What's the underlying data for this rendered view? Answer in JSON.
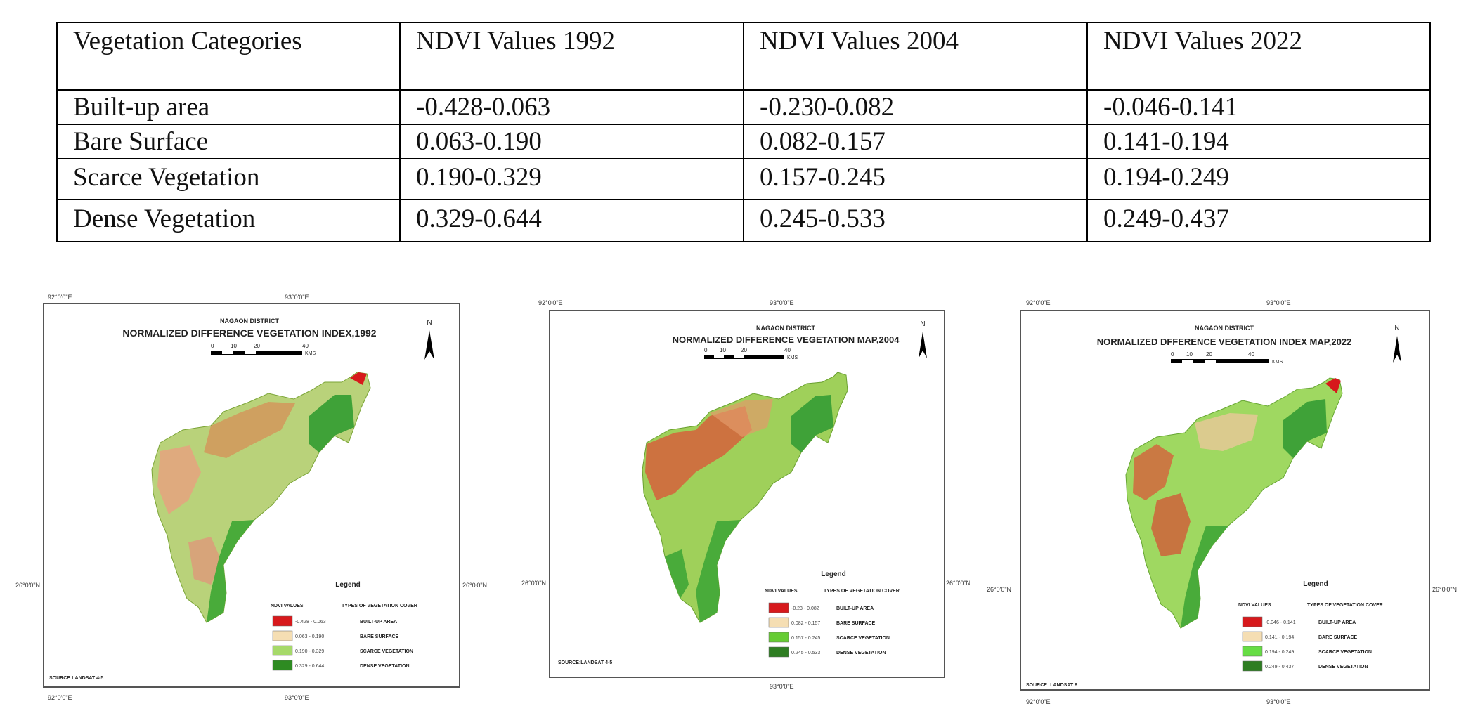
{
  "table": {
    "headers": [
      "Vegetation Categories",
      "NDVI Values 1992",
      "NDVI Values 2004",
      "NDVI Values 2022"
    ],
    "rows": [
      {
        "category": "Built-up area",
        "v1992": "-0.428-0.063",
        "v2004": "-0.230-0.082",
        "v2022": "-0.046-0.141"
      },
      {
        "category": "Bare Surface",
        "v1992": "0.063-0.190",
        "v2004": "0.082-0.157",
        "v2022": "0.141-0.194"
      },
      {
        "category": "Scarce Vegetation",
        "v1992": "0.190-0.329",
        "v2004": "0.157-0.245",
        "v2022": "0.194-0.249"
      },
      {
        "category": "Dense Vegetation",
        "v1992": "0.329-0.644",
        "v2004": "0.245-0.533",
        "v2022": "0.249-0.437"
      }
    ]
  },
  "maps": [
    {
      "district": "NAGAON DISTRICT",
      "title": "NORMALIZED DIFFERENCE VEGETATION INDEX,1992",
      "legend_title": "Legend",
      "legend_col1": "NDVI VALUES",
      "legend_col2": "TYPES OF VEGETATION COVER",
      "legend": [
        {
          "range": "-0.428 - 0.063",
          "label": "BUILT-UP AREA",
          "color": "#d7191c"
        },
        {
          "range": "0.063 - 0.190",
          "label": "BARE SURFACE",
          "color": "#f5deb3"
        },
        {
          "range": "0.190 - 0.329",
          "label": "SCARCE VEGETATION",
          "color": "#a6d96a"
        },
        {
          "range": "0.329 - 0.644",
          "label": "DENSE VEGETATION",
          "color": "#2e8b22"
        }
      ],
      "source": "SOURCE:LANDSAT 4-5",
      "scale_ticks": [
        "0",
        "10",
        "20",
        "40"
      ],
      "scale_unit": "KMS",
      "north": "N",
      "coord_labels": [
        "92°0'0\"E",
        "93°0'0\"E",
        "26°0'0\"N",
        "26°0'0\"N",
        "92°0'0\"E",
        "93°0'0\"E"
      ]
    },
    {
      "district": "NAGAON DISTRICT",
      "title": "NORMALIZED DIFFERENCE VEGETATION MAP,2004",
      "legend_title": "Legend",
      "legend_col1": "NDVI VALUES",
      "legend_col2": "TYPES OF VEGETATION COVER",
      "legend": [
        {
          "range": "-0.23 - 0.082",
          "label": "BUILT-UP AREA",
          "color": "#d7191c"
        },
        {
          "range": "0.082 - 0.157",
          "label": "BARE SURFACE",
          "color": "#f5deb3"
        },
        {
          "range": "0.157 - 0.245",
          "label": "SCARCE VEGETATION",
          "color": "#66cc33"
        },
        {
          "range": "0.245 - 0.533",
          "label": "DENSE VEGETATION",
          "color": "#2e7d22"
        }
      ],
      "source": "SOURCE:LANDSAT 4-5",
      "scale_ticks": [
        "0",
        "10",
        "20",
        "40"
      ],
      "scale_unit": "KMS",
      "north": "N",
      "coord_labels": [
        "92°0'0\"E",
        "93°0'0\"E",
        "26°0'0\"N",
        "26°0'0\"N",
        "93°0'0\"E"
      ]
    },
    {
      "district": "NAGAON DISTRICT",
      "title": "NORMALIZED DFFERENCE VEGETATION INDEX MAP,2022",
      "legend_title": "Legend",
      "legend_col1": "NDVI VALUES",
      "legend_col2": "TYPES OF VEGETATION COVER",
      "legend": [
        {
          "range": "-0.046 - 0.141",
          "label": "BUILT-UP AREA",
          "color": "#d7191c"
        },
        {
          "range": "0.141 - 0.194",
          "label": "BARE SURFACE",
          "color": "#f5deb3"
        },
        {
          "range": "0.194 - 0.249",
          "label": "SCARCE VEGETATION",
          "color": "#66dd44"
        },
        {
          "range": "0.249 - 0.437",
          "label": "DENSE VEGETATION",
          "color": "#2e7d22"
        }
      ],
      "source": "SOURCE: LANDSAT 8",
      "scale_ticks": [
        "0",
        "10",
        "20",
        "40"
      ],
      "scale_unit": "KMS",
      "north": "N",
      "coord_labels": [
        "92°0'0\"E",
        "93°0'0\"E",
        "26°0'0\"N",
        "26°0'0\"N",
        "92°0'0\"E",
        "93°0'0\"E"
      ]
    }
  ]
}
